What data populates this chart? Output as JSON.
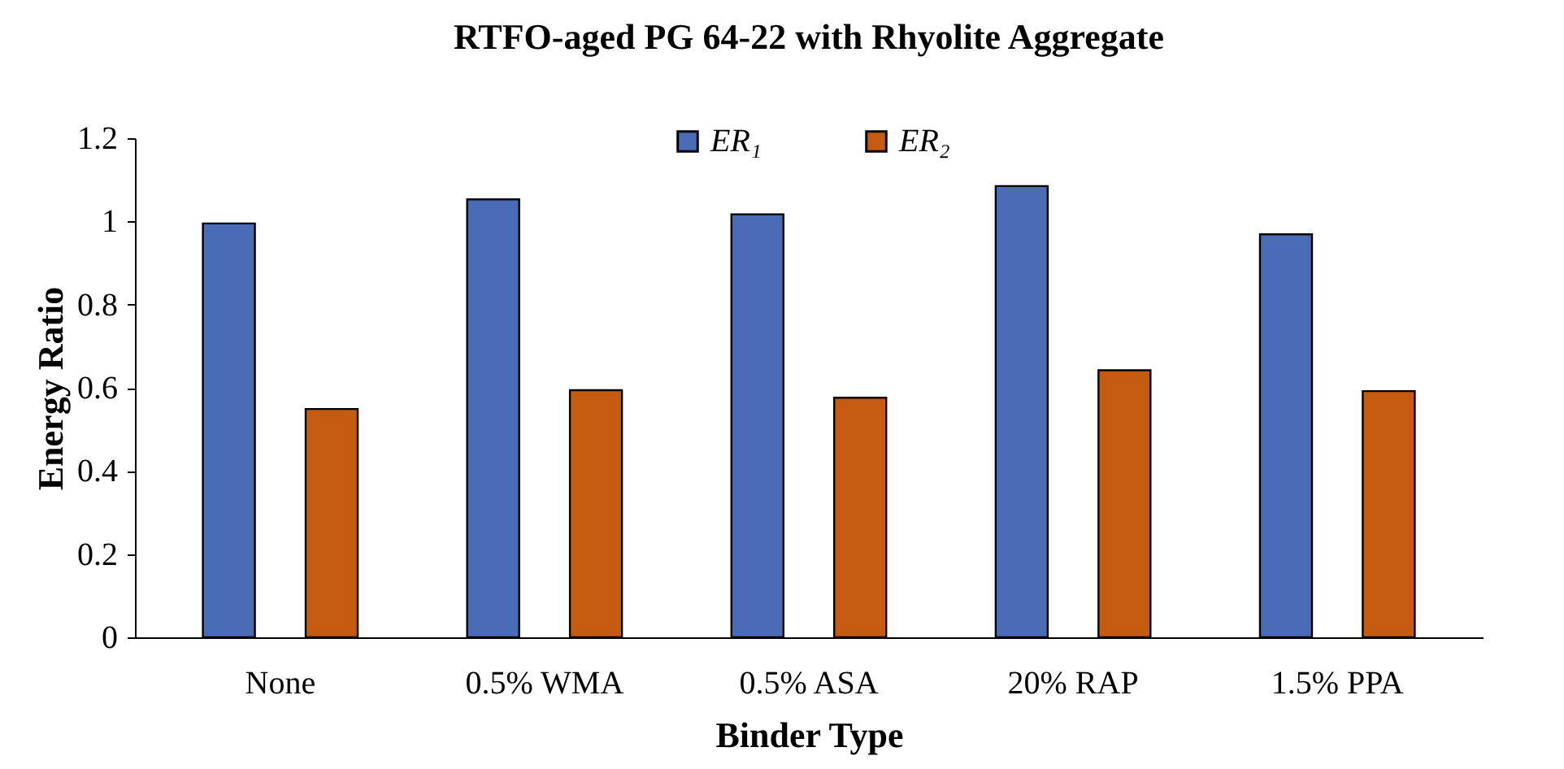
{
  "chart_data": {
    "type": "bar",
    "title": "RTFO-aged PG 64-22 with Rhyolite Aggregate",
    "xlabel": "Binder Type",
    "ylabel": "Energy Ratio",
    "categories": [
      "None",
      "0.5% WMA",
      "0.5% ASA",
      "20% RAP",
      "1.5% PPA"
    ],
    "series": [
      {
        "name": "ER₁",
        "color": "#4a6bb5",
        "values": [
          0.995,
          1.053,
          1.017,
          1.085,
          0.969
        ]
      },
      {
        "name": "ER₂",
        "color": "#c55a11",
        "values": [
          0.549,
          0.594,
          0.576,
          0.642,
          0.592
        ]
      }
    ],
    "ylim": [
      0,
      1.2
    ],
    "yticks": [
      0,
      0.2,
      0.4,
      0.6,
      0.8,
      1,
      1.2
    ],
    "grid": false,
    "legend": "top"
  }
}
